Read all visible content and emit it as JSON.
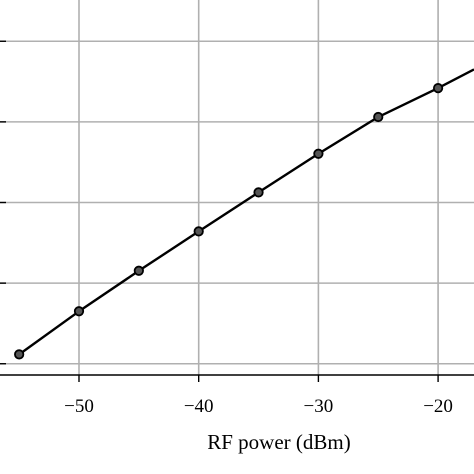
{
  "chart_data": {
    "type": "line",
    "title": "",
    "xlabel": "RF power (dBm)",
    "ylabel": "",
    "xlim": [
      -56.6,
      -17
    ],
    "ylim": [
      0,
      1
    ],
    "x_ticks": [
      -50,
      -40,
      -30,
      -20
    ],
    "x_tick_labels": [
      "−50",
      "−40",
      "−30",
      "−20"
    ],
    "y_gridlines": [
      0.03,
      0.245,
      0.46,
      0.675,
      0.89
    ],
    "grid": true,
    "marker": "circle",
    "colors": {
      "line": "#000000",
      "grid": "#b0b0b0",
      "marker_fill": "#555555"
    },
    "series": [
      {
        "x": [
          -55,
          -50,
          -45,
          -40,
          -35,
          -30,
          -25,
          -20,
          -17
        ],
        "y": [
          0.055,
          0.17,
          0.278,
          0.383,
          0.487,
          0.59,
          0.688,
          0.765,
          0.815
        ]
      }
    ]
  }
}
